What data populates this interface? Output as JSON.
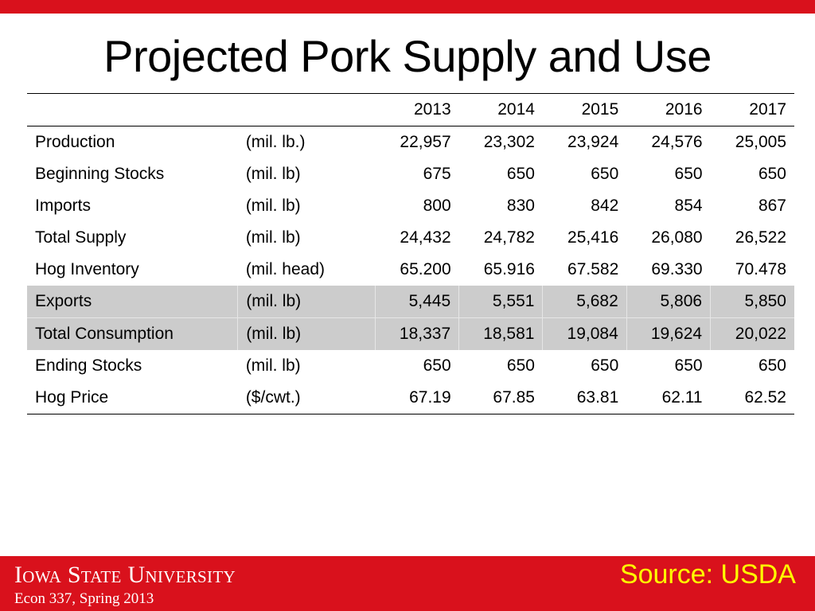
{
  "slide": {
    "title": "Projected Pork Supply and Use"
  },
  "table": {
    "header": {
      "name": "",
      "unit": "",
      "years": [
        "2013",
        "2014",
        "2015",
        "2016",
        "2017"
      ]
    },
    "rows": [
      {
        "name": "Production",
        "unit": "(mil. lb.)",
        "values": [
          "22,957",
          "23,302",
          "23,924",
          "24,576",
          "25,005"
        ],
        "highlighted": false
      },
      {
        "name": "Beginning Stocks",
        "unit": "(mil. lb)",
        "values": [
          "675",
          "650",
          "650",
          "650",
          "650"
        ],
        "highlighted": false
      },
      {
        "name": "Imports",
        "unit": "(mil. lb)",
        "values": [
          "800",
          "830",
          "842",
          "854",
          "867"
        ],
        "highlighted": false
      },
      {
        "name": "Total Supply",
        "unit": "(mil. lb)",
        "values": [
          "24,432",
          "24,782",
          "25,416",
          "26,080",
          "26,522"
        ],
        "highlighted": false
      },
      {
        "name": "Hog Inventory",
        "unit": "(mil. head)",
        "values": [
          "65.200",
          "65.916",
          "67.582",
          "69.330",
          "70.478"
        ],
        "highlighted": false
      },
      {
        "name": "Exports",
        "unit": "(mil. lb)",
        "values": [
          "5,445",
          "5,551",
          "5,682",
          "5,806",
          "5,850"
        ],
        "highlighted": true
      },
      {
        "name": "Total Consumption",
        "unit": "(mil. lb)",
        "values": [
          "18,337",
          "18,581",
          "19,084",
          "19,624",
          "20,022"
        ],
        "highlighted": true
      },
      {
        "name": "Ending Stocks",
        "unit": "(mil. lb)",
        "values": [
          "650",
          "650",
          "650",
          "650",
          "650"
        ],
        "highlighted": false
      },
      {
        "name": "Hog Price",
        "unit": "($/cwt.)",
        "values": [
          "67.19",
          "67.85",
          "63.81",
          "62.11",
          "62.52"
        ],
        "highlighted": false
      }
    ]
  },
  "footer": {
    "university": "Iowa State University",
    "course": "Econ 337, Spring 2013",
    "source": "Source: USDA"
  },
  "colors": {
    "brand_red": "#d9111c",
    "source_yellow": "#ffff00",
    "highlight_gray": "#cccccc"
  }
}
